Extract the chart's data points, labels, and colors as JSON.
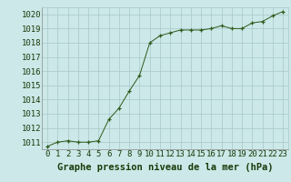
{
  "x": [
    0,
    1,
    2,
    3,
    4,
    5,
    6,
    7,
    8,
    9,
    10,
    11,
    12,
    13,
    14,
    15,
    16,
    17,
    18,
    19,
    20,
    21,
    22,
    23
  ],
  "y": [
    1010.7,
    1011.0,
    1011.1,
    1011.0,
    1011.0,
    1011.1,
    1012.6,
    1013.4,
    1014.6,
    1015.7,
    1018.0,
    1018.5,
    1018.7,
    1018.9,
    1018.9,
    1018.9,
    1019.0,
    1019.2,
    1019.0,
    1019.0,
    1019.4,
    1019.5,
    1019.9,
    1020.2
  ],
  "ylim": [
    1010.5,
    1020.5
  ],
  "xlim": [
    -0.5,
    23.5
  ],
  "yticks": [
    1011,
    1012,
    1013,
    1014,
    1015,
    1016,
    1017,
    1018,
    1019,
    1020
  ],
  "xticks": [
    0,
    1,
    2,
    3,
    4,
    5,
    6,
    7,
    8,
    9,
    10,
    11,
    12,
    13,
    14,
    15,
    16,
    17,
    18,
    19,
    20,
    21,
    22,
    23
  ],
  "line_color": "#2d5a1b",
  "marker_color": "#2d5a1b",
  "bg_color": "#cce8e8",
  "grid_color": "#a8c8c8",
  "xlabel": "Graphe pression niveau de la mer (hPa)",
  "xlabel_color": "#1a3a0a",
  "xlabel_fontsize": 7.5,
  "tick_fontsize": 6.5,
  "tick_color": "#1a3a0a"
}
